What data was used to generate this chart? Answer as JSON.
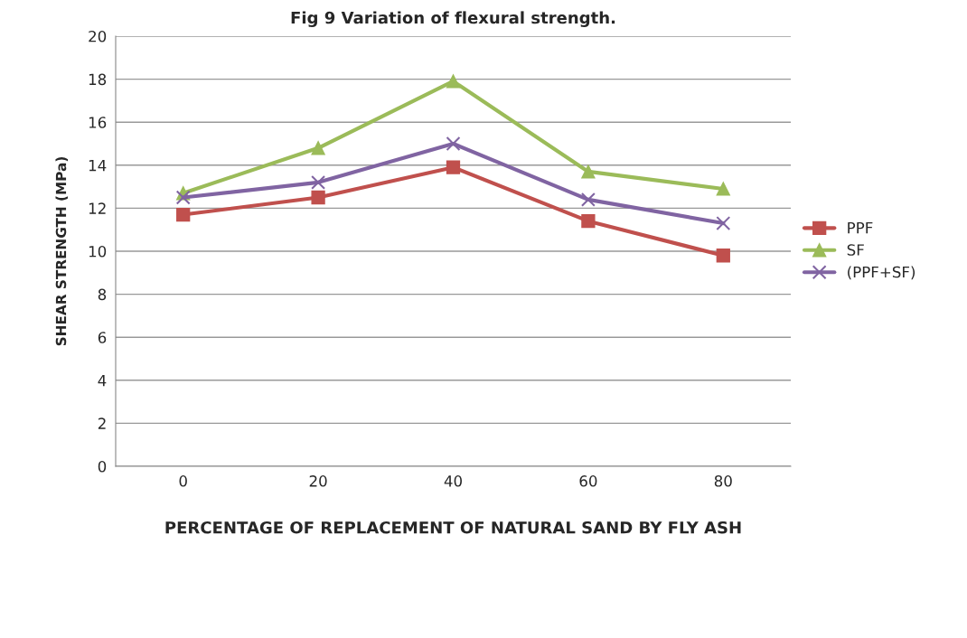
{
  "chart_data": {
    "type": "line",
    "title": "Fig 9 Variation of flexural strength.",
    "xlabel": "PERCENTAGE OF REPLACEMENT OF NATURAL SAND BY FLY ASH",
    "ylabel": "SHEAR STRENGTH (MPa)",
    "categories": [
      "0",
      "20",
      "40",
      "60",
      "80"
    ],
    "series": [
      {
        "name": "PPF",
        "color": "#c0504d",
        "marker": "square",
        "values": [
          11.7,
          12.5,
          13.9,
          11.4,
          9.8
        ]
      },
      {
        "name": "SF",
        "color": "#9bbb59",
        "marker": "triangle",
        "values": [
          12.7,
          14.8,
          17.9,
          13.7,
          12.9
        ]
      },
      {
        "name": "(PPF+SF)",
        "color": "#8064a2",
        "marker": "cross",
        "values": [
          12.5,
          13.2,
          15.0,
          12.4,
          11.3
        ]
      }
    ],
    "ylim": [
      0,
      20
    ],
    "yticks": [
      0,
      2,
      4,
      6,
      8,
      10,
      12,
      14,
      16,
      18,
      20
    ],
    "grid": "y",
    "legend": "right"
  }
}
